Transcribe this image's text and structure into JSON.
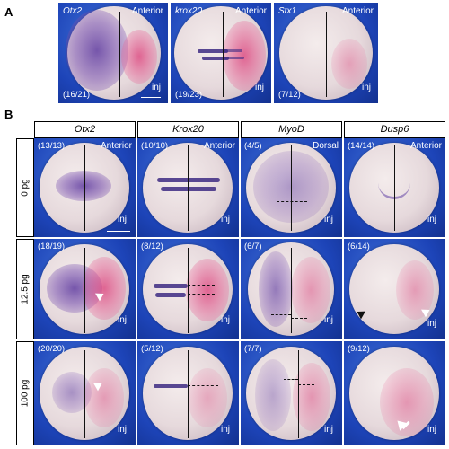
{
  "panel_a": {
    "letter": "A",
    "tiles": [
      {
        "gene": "Otx2",
        "orientation": "Anterior",
        "count": "(16/21)",
        "inj": "inj"
      },
      {
        "gene": "krox20",
        "orientation": "Anterior",
        "count": "(19/23)",
        "inj": "inj"
      },
      {
        "gene": "Stx1",
        "orientation": "Anterior",
        "count": "(7/12)",
        "inj": "inj"
      }
    ]
  },
  "panel_b": {
    "letter": "B",
    "columns": [
      "Otx2",
      "Krox20",
      "MyoD",
      "Dusp6"
    ],
    "rows": [
      "0 pg",
      "12.5 pg",
      "100 pg"
    ],
    "tiles": [
      [
        {
          "count": "(13/13)",
          "orientation": "Anterior",
          "inj": "inj"
        },
        {
          "count": "(10/10)",
          "orientation": "Anterior",
          "inj": "inj"
        },
        {
          "count": "(4/5)",
          "orientation": "Dorsal",
          "inj": "inj"
        },
        {
          "count": "(14/14)",
          "orientation": "Anterior",
          "inj": "inj"
        }
      ],
      [
        {
          "count": "(18/19)",
          "orientation": "",
          "inj": "inj"
        },
        {
          "count": "(8/12)",
          "orientation": "",
          "inj": "inj"
        },
        {
          "count": "(6/7)",
          "orientation": "",
          "inj": "inj"
        },
        {
          "count": "(6/14)",
          "orientation": "",
          "inj": "inj"
        }
      ],
      [
        {
          "count": "(20/20)",
          "orientation": "",
          "inj": "inj"
        },
        {
          "count": "(5/12)",
          "orientation": "",
          "inj": "inj"
        },
        {
          "count": "(7/7)",
          "orientation": "",
          "inj": "inj"
        },
        {
          "count": "(9/12)",
          "orientation": "",
          "inj": "inj"
        }
      ]
    ]
  }
}
